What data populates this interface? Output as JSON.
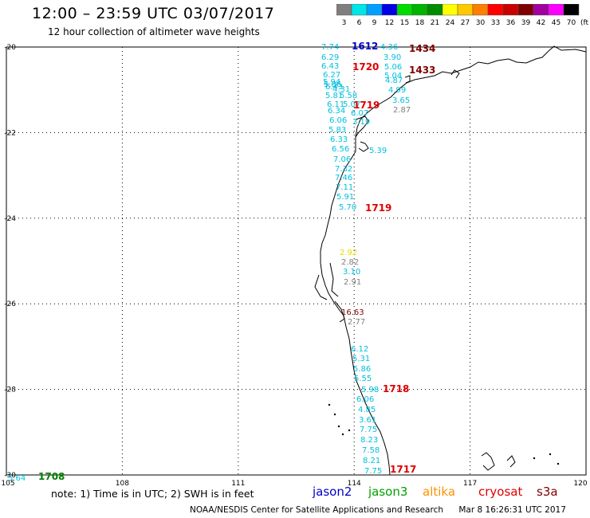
{
  "header": {
    "title": "12:00 – 23:59 UTC 03/07/2017",
    "subtitle": "12 hour collection of altimeter wave heights"
  },
  "colorbar": {
    "unit": "(ft)",
    "steps": [
      {
        "label": "3",
        "color": "#7f7f7f"
      },
      {
        "label": "6",
        "color": "#00e5e5"
      },
      {
        "label": "9",
        "color": "#00a0ff"
      },
      {
        "label": "12",
        "color": "#0000e6"
      },
      {
        "label": "15",
        "color": "#00dc00"
      },
      {
        "label": "18",
        "color": "#00b400"
      },
      {
        "label": "21",
        "color": "#008c00"
      },
      {
        "label": "24",
        "color": "#ffff00"
      },
      {
        "label": "27",
        "color": "#ffc800"
      },
      {
        "label": "30",
        "color": "#ff7f00"
      },
      {
        "label": "33",
        "color": "#ff0000"
      },
      {
        "label": "36",
        "color": "#c80000"
      },
      {
        "label": "39",
        "color": "#7f0000"
      },
      {
        "label": "42",
        "color": "#a000a0"
      },
      {
        "label": "45",
        "color": "#ff00ff"
      },
      {
        "label": "70",
        "color": "#000000"
      }
    ]
  },
  "axes": {
    "lat_labels": [
      "-20",
      "-22",
      "-24",
      "-26",
      "-28",
      "-30"
    ],
    "lon_labels": [
      "105",
      "108",
      "111",
      "114",
      "117",
      "120"
    ]
  },
  "colors": {
    "cyan": "#00c0e0",
    "gray": "#808080",
    "yellow": "#e8d800",
    "red": "#e00000",
    "darkred": "#800000",
    "blue": "#0000c8",
    "green": "#008000",
    "orange": "#ff9000",
    "coast": "#000000"
  },
  "observations": [
    {
      "text": "7.74",
      "sat": "cyan"
    },
    {
      "text": "1612",
      "sat": "blue"
    },
    {
      "text": "4.36",
      "sat": "cyan"
    },
    {
      "text": "1434",
      "sat": "darkred"
    },
    {
      "text": "6.29",
      "sat": "cyan"
    },
    {
      "text": "3.90",
      "sat": "cyan"
    },
    {
      "text": "6.43",
      "sat": "cyan"
    },
    {
      "text": "1720",
      "sat": "red"
    },
    {
      "text": "5.06",
      "sat": "cyan"
    },
    {
      "text": "1433",
      "sat": "darkred"
    },
    {
      "text": "6.27",
      "sat": "cyan"
    },
    {
      "text": "5.04",
      "sat": "cyan"
    },
    {
      "text": "5.94",
      "sat": "cyan"
    },
    {
      "text": "4.87",
      "sat": "cyan"
    },
    {
      "text": "5.86",
      "sat": "cyan"
    },
    {
      "text": "6.43",
      "sat": "cyan"
    },
    {
      "text": "4.31",
      "sat": "cyan"
    },
    {
      "text": "4.99",
      "sat": "cyan"
    },
    {
      "text": "5.81",
      "sat": "cyan"
    },
    {
      "text": "5.58",
      "sat": "cyan"
    },
    {
      "text": "3.65",
      "sat": "cyan"
    },
    {
      "text": "6.11",
      "sat": "cyan"
    },
    {
      "text": "5.07",
      "sat": "cyan"
    },
    {
      "text": "1719",
      "sat": "red"
    },
    {
      "text": "6.34",
      "sat": "cyan"
    },
    {
      "text": "6.07",
      "sat": "cyan"
    },
    {
      "text": "2.87",
      "sat": "gray"
    },
    {
      "text": "6.06",
      "sat": "cyan"
    },
    {
      "text": "3.19",
      "sat": "cyan"
    },
    {
      "text": "5.83",
      "sat": "cyan"
    },
    {
      "text": "6.33",
      "sat": "cyan"
    },
    {
      "text": "6.56",
      "sat": "cyan"
    },
    {
      "text": "5.39",
      "sat": "cyan"
    },
    {
      "text": "7.06",
      "sat": "cyan"
    },
    {
      "text": "7.32",
      "sat": "cyan"
    },
    {
      "text": "7.46",
      "sat": "cyan"
    },
    {
      "text": "7.11",
      "sat": "cyan"
    },
    {
      "text": "5.91",
      "sat": "cyan"
    },
    {
      "text": "5.70",
      "sat": "cyan"
    },
    {
      "text": "1719",
      "sat": "red"
    },
    {
      "text": "2.92",
      "sat": "yellow"
    },
    {
      "text": "2.82",
      "sat": "gray"
    },
    {
      "text": "3.10",
      "sat": "cyan"
    },
    {
      "text": "2.91",
      "sat": "gray"
    },
    {
      "text": "16.63",
      "sat": "darkred"
    },
    {
      "text": "2.77",
      "sat": "gray"
    },
    {
      "text": "6.12",
      "sat": "cyan"
    },
    {
      "text": "5.31",
      "sat": "cyan"
    },
    {
      "text": "5.86",
      "sat": "cyan"
    },
    {
      "text": "5.55",
      "sat": "cyan"
    },
    {
      "text": "5.98",
      "sat": "cyan"
    },
    {
      "text": "1718",
      "sat": "red"
    },
    {
      "text": "6.06",
      "sat": "cyan"
    },
    {
      "text": "4.85",
      "sat": "cyan"
    },
    {
      "text": "3.61",
      "sat": "cyan"
    },
    {
      "text": "7.75",
      "sat": "cyan"
    },
    {
      "text": "8.23",
      "sat": "cyan"
    },
    {
      "text": "7.58",
      "sat": "cyan"
    },
    {
      "text": "8.21",
      "sat": "cyan"
    },
    {
      "text": "7.75",
      "sat": "cyan"
    },
    {
      "text": "1717",
      "sat": "red"
    },
    {
      "text": "5.64",
      "sat": "cyan"
    },
    {
      "text": "1708",
      "sat": "green"
    }
  ],
  "note": "note: 1) Time is in UTC; 2) SWH is in feet",
  "legend": [
    {
      "name": "jason2",
      "color": "#0000c8"
    },
    {
      "name": "jason3",
      "color": "#00a000"
    },
    {
      "name": "altika",
      "color": "#ff9000"
    },
    {
      "name": "cryosat",
      "color": "#e00000"
    },
    {
      "name": "s3a",
      "color": "#800000"
    }
  ],
  "footer": {
    "credit": "NOAA/NESDIS Center for Satellite Applications and Research",
    "timestamp": "Mar  8 16:26:31 UTC 2017"
  }
}
